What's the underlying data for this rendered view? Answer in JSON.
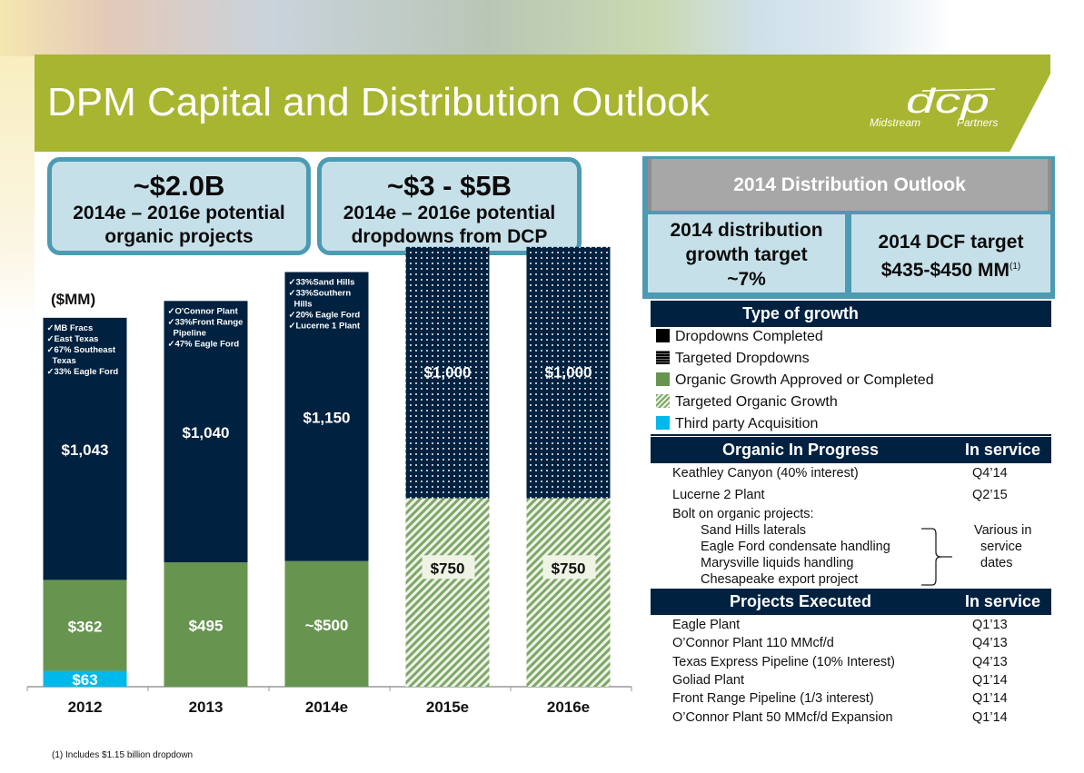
{
  "header": {
    "title": "DPM Capital and Distribution Outlook",
    "logo_main": "dcp",
    "logo_sub_left": "Midstream",
    "logo_sub_right": "Partners"
  },
  "callouts": [
    {
      "big": "~$2.0B",
      "line1": "2014e – 2016e potential",
      "line2": "organic projects"
    },
    {
      "big": "~$3 - $5B",
      "line1": "2014e – 2016e potential",
      "line2": "dropdowns from DCP"
    }
  ],
  "chart_data": {
    "type": "bar",
    "stacked": true,
    "ylabel": "($MM)",
    "categories": [
      "2012",
      "2013",
      "2014e",
      "2015e",
      "2016e"
    ],
    "ylim": [
      0,
      1500
    ],
    "series": [
      {
        "name": "Third party Acquisition",
        "color": "#00b8ea",
        "pattern": "solid",
        "values": [
          63,
          0,
          0,
          0,
          0
        ],
        "labels": [
          "$63",
          "",
          "",
          "",
          ""
        ]
      },
      {
        "name": "Organic Growth Approved or Completed",
        "color": "#679550",
        "pattern": "solid",
        "values": [
          362,
          495,
          500,
          0,
          0
        ],
        "labels": [
          "$362",
          "$495",
          "~$500",
          "",
          ""
        ]
      },
      {
        "name": "Targeted Organic Growth",
        "color": "#679550",
        "pattern": "hatch",
        "values": [
          0,
          0,
          0,
          750,
          750
        ],
        "labels": [
          "",
          "",
          "",
          "$750",
          "$750"
        ]
      },
      {
        "name": "Dropdowns Completed",
        "color": "#00213f",
        "pattern": "solid",
        "values": [
          1043,
          1040,
          1150,
          0,
          0
        ],
        "labels": [
          "$1,043",
          "$1,040",
          "$1,150",
          "",
          ""
        ]
      },
      {
        "name": "Targeted Dropdowns",
        "color": "#00213f",
        "pattern": "dots",
        "values": [
          0,
          0,
          0,
          1000,
          1000
        ],
        "labels": [
          "",
          "",
          "",
          "$1,000",
          "$1,000"
        ]
      }
    ],
    "bar_notes": [
      [
        "MB Fracs",
        "East Texas",
        "67% Southeast Texas",
        "33% Eagle Ford"
      ],
      [
        "O'Connor Plant",
        "33%Front Range Pipeline",
        "47% Eagle Ford"
      ],
      [
        "33%Sand Hills",
        "33%Southern Hills",
        "20% Eagle Ford",
        "Lucerne 1 Plant"
      ],
      [],
      []
    ]
  },
  "footnote": "(1) Includes $1.15 billion dropdown",
  "distribution": {
    "title": "2014 Distribution Outlook",
    "growth_l1": "2014 distribution",
    "growth_l2": "growth target",
    "growth_l3": "~7%",
    "dcf_l1": "2014 DCF target",
    "dcf_l2": "$435-$450 MM",
    "dcf_sup": "(1)"
  },
  "legend": {
    "title": "Type of growth",
    "items": [
      {
        "label": "Dropdowns Completed",
        "icon": "solid-black-square"
      },
      {
        "label": "Targeted Dropdowns",
        "icon": "dotted-square"
      },
      {
        "label": "Organic Growth Approved or Completed",
        "icon": "solid-green-square"
      },
      {
        "label": "Targeted Organic Growth",
        "icon": "hatched-green-square"
      },
      {
        "label": "Third party Acquisition",
        "icon": "solid-cyan-square"
      }
    ]
  },
  "organic_in_progress": {
    "title": "Organic In Progress",
    "col": "In service",
    "rows": [
      {
        "name": "Keathley Canyon (40% interest)",
        "date": "Q4’14"
      },
      {
        "name": "Lucerne 2 Plant",
        "date": "Q2’15"
      }
    ],
    "bolt_on_label": "Bolt on organic projects:",
    "bolt_on": [
      "Sand Hills laterals",
      "Eagle Ford condensate handling",
      "Marysville liquids handling",
      "Chesapeake export project"
    ],
    "bolt_on_date_l1": "Various in",
    "bolt_on_date_l2": "service",
    "bolt_on_date_l3": "dates"
  },
  "projects_executed": {
    "title": "Projects Executed",
    "col": "In service",
    "rows": [
      {
        "name": "Eagle Plant",
        "date": "Q1’13"
      },
      {
        "name": "O’Connor Plant 110 MMcf/d",
        "date": "Q4’13"
      },
      {
        "name": "Texas Express Pipeline (10% Interest)",
        "date": "Q4’13"
      },
      {
        "name": "Goliad Plant",
        "date": "Q1’14"
      },
      {
        "name": "Front Range Pipeline (1/3 interest)",
        "date": "Q1’14"
      },
      {
        "name": "O’Connor Plant 50 MMcf/d Expansion",
        "date": "Q1’14"
      }
    ]
  }
}
